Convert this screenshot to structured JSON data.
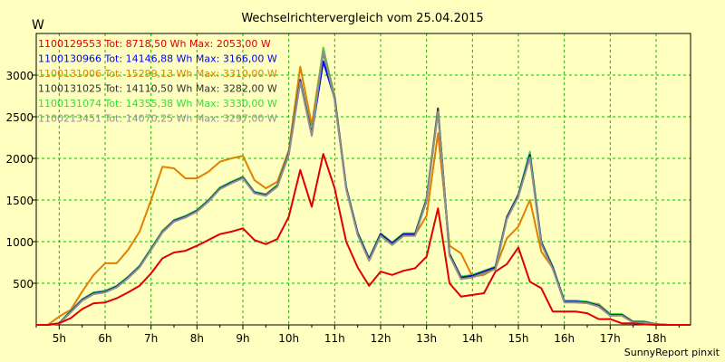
{
  "chart_data": {
    "type": "line",
    "title": "Wechselrichtervergleich vom 25.04.2015",
    "ylabel": "W",
    "xlabel": "",
    "xlim": [
      4.5,
      18.75
    ],
    "ylim": [
      0,
      3500
    ],
    "yticks": [
      500,
      1000,
      1500,
      2000,
      2500,
      3000
    ],
    "xticks": [
      {
        "value": 5,
        "label": "5h"
      },
      {
        "value": 6,
        "label": "6h"
      },
      {
        "value": 7,
        "label": "7h"
      },
      {
        "value": 8,
        "label": "8h"
      },
      {
        "value": 9,
        "label": "9h"
      },
      {
        "value": 10,
        "label": "10h"
      },
      {
        "value": 11,
        "label": "11h"
      },
      {
        "value": 12,
        "label": "12h"
      },
      {
        "value": 13,
        "label": "13h"
      },
      {
        "value": 14,
        "label": "14h"
      },
      {
        "value": 15,
        "label": "15h"
      },
      {
        "value": 16,
        "label": "16h"
      },
      {
        "value": 17,
        "label": "17h"
      },
      {
        "value": 18,
        "label": "18h"
      }
    ],
    "grid": true,
    "legend_position": "top-left",
    "footer": "SunnyReport pinxit",
    "x": [
      4.5,
      4.75,
      5.0,
      5.25,
      5.5,
      5.75,
      6.0,
      6.25,
      6.5,
      6.75,
      7.0,
      7.25,
      7.5,
      7.75,
      8.0,
      8.25,
      8.5,
      8.75,
      9.0,
      9.25,
      9.5,
      9.75,
      10.0,
      10.25,
      10.5,
      10.75,
      11.0,
      11.25,
      11.5,
      11.75,
      12.0,
      12.25,
      12.5,
      12.75,
      13.0,
      13.25,
      13.5,
      13.75,
      14.0,
      14.25,
      14.5,
      14.75,
      15.0,
      15.25,
      15.5,
      15.75,
      16.0,
      16.25,
      16.5,
      16.75,
      17.0,
      17.25,
      17.5,
      17.75,
      18.0,
      18.25,
      18.5,
      18.75
    ],
    "series": [
      {
        "name": "1100131006",
        "legend": "1100131006 Tot: 15299,13 Wh Max: 3310,00 W",
        "color": "#e08000",
        "values": [
          0,
          0,
          100,
          180,
          400,
          600,
          740,
          740,
          900,
          1120,
          1500,
          1900,
          1880,
          1760,
          1760,
          1840,
          1960,
          2000,
          2030,
          1740,
          1640,
          1720,
          2100,
          3100,
          2400,
          3310,
          2750,
          1640,
          1100,
          780,
          1080,
          990,
          1080,
          1080,
          1310,
          2300,
          950,
          860,
          580,
          600,
          680,
          1040,
          1180,
          1500,
          880,
          680,
          280,
          270,
          270,
          250,
          130,
          130,
          40,
          40,
          10,
          0,
          0,
          0
        ]
      },
      {
        "name": "1100131074",
        "legend": "1100131074 Tot: 14355,38 Wh Max: 3330,00 W",
        "color": "#30e030",
        "values": [
          0,
          0,
          20,
          170,
          310,
          390,
          410,
          470,
          580,
          710,
          920,
          1130,
          1260,
          1310,
          1380,
          1500,
          1650,
          1720,
          1780,
          1600,
          1570,
          1680,
          2070,
          2950,
          2300,
          3330,
          2730,
          1660,
          1110,
          800,
          1100,
          990,
          1100,
          1100,
          1520,
          2580,
          860,
          580,
          600,
          650,
          700,
          1300,
          1570,
          2080,
          1000,
          700,
          290,
          290,
          280,
          240,
          130,
          130,
          40,
          40,
          10,
          0,
          0,
          0
        ]
      },
      {
        "name": "1100130966",
        "legend": "1100130966 Tot: 14146,88 Wh Max: 3166,00 W",
        "color": "#0000ff",
        "values": [
          0,
          0,
          20,
          160,
          300,
          380,
          400,
          460,
          570,
          700,
          910,
          1120,
          1250,
          1300,
          1370,
          1490,
          1640,
          1710,
          1770,
          1590,
          1560,
          1670,
          2060,
          2940,
          2290,
          3166,
          2720,
          1650,
          1100,
          790,
          1090,
          980,
          1090,
          1090,
          1510,
          2570,
          850,
          570,
          590,
          640,
          690,
          1290,
          1560,
          2040,
          990,
          690,
          280,
          280,
          270,
          230,
          120,
          120,
          35,
          35,
          8,
          0,
          0,
          0
        ]
      },
      {
        "name": "1100131025",
        "legend": "1100131025 Tot: 14110,50 Wh Max: 3282,00 W",
        "color": "#303030",
        "values": [
          0,
          0,
          15,
          155,
          295,
          375,
          395,
          455,
          565,
          695,
          905,
          1115,
          1245,
          1295,
          1365,
          1485,
          1635,
          1705,
          1765,
          1585,
          1555,
          1665,
          2050,
          2930,
          2280,
          3282,
          2710,
          1640,
          1090,
          780,
          1080,
          970,
          1080,
          1080,
          1500,
          2600,
          840,
          560,
          580,
          630,
          680,
          1280,
          1550,
          2020,
          980,
          680,
          275,
          275,
          265,
          225,
          115,
          115,
          30,
          30,
          5,
          0,
          0,
          0
        ]
      },
      {
        "name": "1100213451",
        "legend": "1100213451 Tot: 14070,25 Wh Max: 3297,00 W",
        "color": "#909090",
        "values": [
          0,
          0,
          15,
          150,
          290,
          370,
          390,
          450,
          560,
          690,
          900,
          1110,
          1240,
          1290,
          1360,
          1480,
          1630,
          1700,
          1760,
          1580,
          1550,
          1660,
          2045,
          2920,
          2270,
          3297,
          2700,
          1630,
          1080,
          770,
          1070,
          960,
          1070,
          1070,
          1490,
          2560,
          830,
          550,
          570,
          620,
          670,
          1270,
          1540,
          2010,
          970,
          670,
          270,
          270,
          260,
          220,
          110,
          110,
          28,
          28,
          5,
          0,
          0,
          0
        ]
      },
      {
        "name": "1100129553",
        "legend": "1100129553 Tot: 8718,50 Wh Max: 2053,00 W",
        "color": "#e00000",
        "values": [
          0,
          0,
          20,
          80,
          190,
          260,
          270,
          320,
          390,
          470,
          620,
          800,
          870,
          890,
          950,
          1020,
          1090,
          1120,
          1160,
          1020,
          970,
          1030,
          1300,
          1860,
          1420,
          2053,
          1640,
          1000,
          690,
          470,
          640,
          600,
          650,
          680,
          820,
          1400,
          500,
          340,
          360,
          380,
          640,
          730,
          930,
          520,
          440,
          160,
          160,
          160,
          140,
          70,
          70,
          20,
          20,
          5,
          0,
          0,
          0,
          0
        ]
      }
    ]
  }
}
